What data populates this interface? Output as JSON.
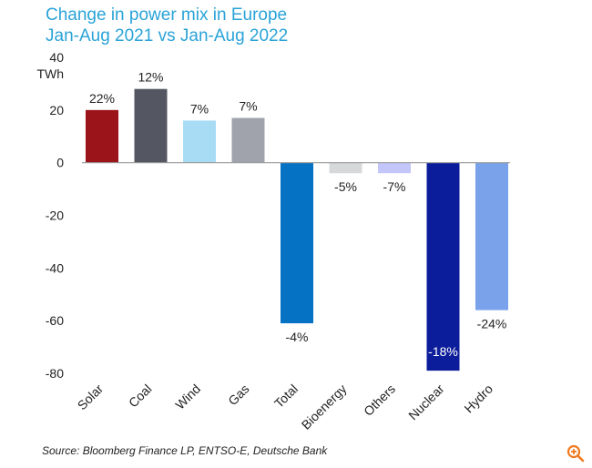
{
  "chart_data": {
    "type": "bar",
    "title_line1": "Change in power mix in Europe",
    "title_line2": "Jan-Aug 2021 vs Jan-Aug 2022",
    "ylabel": "TWh",
    "ylim": [
      -80,
      40
    ],
    "yticks": [
      40,
      20,
      0,
      -20,
      -40,
      -60,
      -80
    ],
    "categories": [
      "Solar",
      "Coal",
      "Wind",
      "Gas",
      "Total",
      "Bioenergy",
      "Others",
      "Nuclear",
      "Hydro"
    ],
    "values": [
      20,
      28,
      16,
      17,
      -61,
      -4,
      -4,
      -79,
      -56
    ],
    "labels": [
      "22%",
      "12%",
      "7%",
      "7%",
      "-4%",
      "-5%",
      "-7%",
      "-18%",
      "-24%"
    ],
    "colors": [
      "#9b1419",
      "#545662",
      "#a8dcf5",
      "#a1a3ac",
      "#0672c4",
      "#d7d8da",
      "#c3c6fb",
      "#0c1d9b",
      "#7aa2eb"
    ]
  },
  "source": "Source: Bloomberg Finance LP, ENTSO-E, Deutsche Bank",
  "icons": {
    "zoom": "zoom-in-icon",
    "accent": "#f07a20"
  }
}
